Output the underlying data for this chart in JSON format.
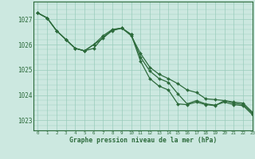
{
  "title": "Graphe pression niveau de la mer (hPa)",
  "background_color": "#cce8e0",
  "grid_color": "#99ccbb",
  "line_color": "#2d6b3c",
  "xlim": [
    -0.5,
    23
  ],
  "ylim": [
    1022.6,
    1027.7
  ],
  "yticks": [
    1023,
    1024,
    1025,
    1026,
    1027
  ],
  "xticks": [
    0,
    1,
    2,
    3,
    4,
    5,
    6,
    7,
    8,
    9,
    10,
    11,
    12,
    13,
    14,
    15,
    16,
    17,
    18,
    19,
    20,
    21,
    22,
    23
  ],
  "series": [
    [
      1027.25,
      1027.05,
      1026.6,
      1026.25,
      1025.85,
      1025.8,
      1025.8,
      1026.0,
      1026.55,
      1026.65,
      1026.35,
      1025.7,
      1025.2,
      1024.9,
      1024.7,
      1024.55,
      1024.3,
      1024.2,
      1023.9,
      1023.85,
      1023.8,
      1023.75,
      1023.7,
      1023.35
    ],
    [
      1027.25,
      1027.05,
      1026.6,
      1026.2,
      1025.85,
      1025.75,
      1026.0,
      1026.25,
      1026.6,
      1026.65,
      1026.4,
      1025.5,
      1025.0,
      1024.7,
      1024.55,
      1024.1,
      1023.7,
      1023.8,
      1023.7,
      1023.65,
      1023.75,
      1023.65,
      1023.6,
      1023.25
    ],
    [
      1027.25,
      1027.05,
      1026.6,
      1026.2,
      1025.85,
      1025.75,
      1026.0,
      1026.3,
      1026.6,
      1026.65,
      1026.4,
      1025.3,
      1024.65,
      1024.35,
      1024.25,
      1023.7,
      1023.65,
      1023.75,
      1023.65,
      1023.6,
      1023.8,
      1023.75,
      1023.65,
      1023.3
    ]
  ],
  "series_divergent": [
    1027.25,
    1027.05,
    1026.6,
    1026.2,
    1025.85,
    1025.75,
    1025.85,
    1026.3,
    1026.55,
    1026.65,
    1026.4,
    1025.25,
    1024.5,
    1024.2,
    1024.1,
    1023.65,
    1023.6,
    1023.75,
    1023.65,
    1023.6,
    1023.75,
    1023.65,
    1023.6,
    1023.25
  ]
}
